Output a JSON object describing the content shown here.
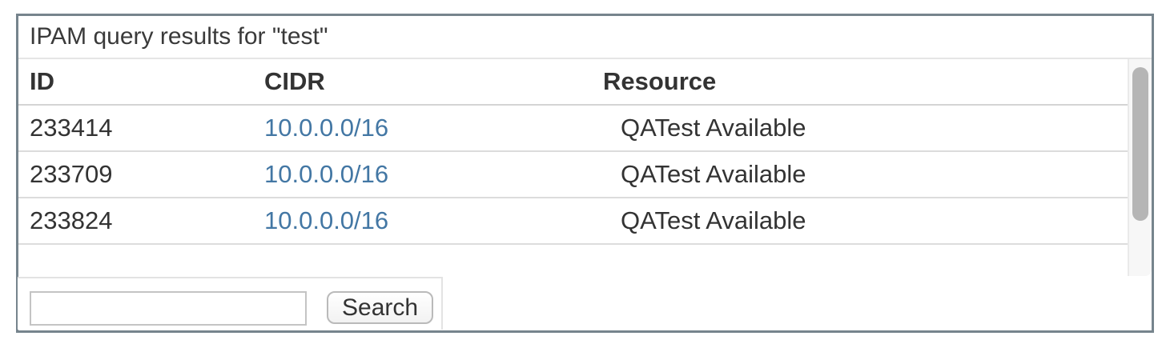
{
  "panel": {
    "title": "IPAM query results for \"test\""
  },
  "table": {
    "columns": [
      {
        "key": "id",
        "label": "ID"
      },
      {
        "key": "cidr",
        "label": "CIDR"
      },
      {
        "key": "resource",
        "label": "Resource"
      }
    ],
    "rows": [
      {
        "id": "233414",
        "cidr": "10.0.0.0/16",
        "resource": "QATest Available"
      },
      {
        "id": "233709",
        "cidr": "10.0.0.0/16",
        "resource": "QATest Available"
      },
      {
        "id": "233824",
        "cidr": "10.0.0.0/16",
        "resource": "QATest Available"
      }
    ]
  },
  "search": {
    "input_value": "",
    "button_label": "Search"
  },
  "colors": {
    "link": "#4377A4",
    "panel_border": "#76848D",
    "text": "#333333",
    "row_divider": "#DCDCDC",
    "scrollbar_thumb": "#B5B5B5"
  }
}
